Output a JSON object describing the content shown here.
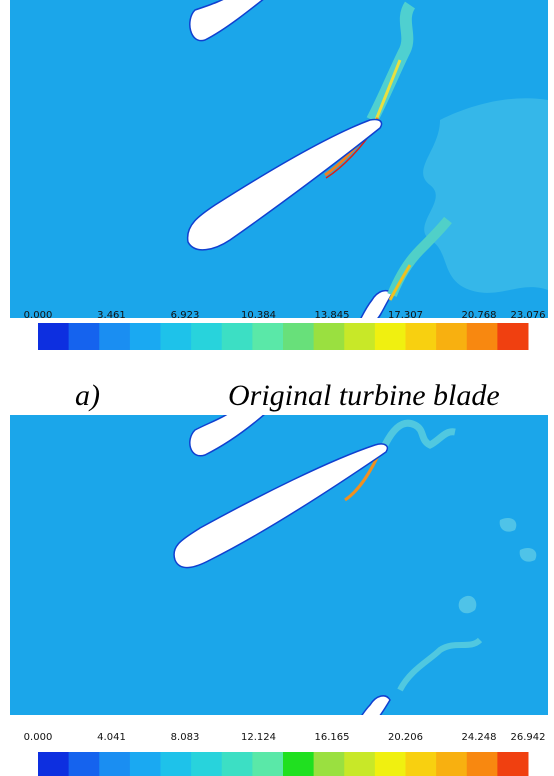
{
  "panels": [
    {
      "colorbar": {
        "ticks": [
          "0.000",
          "3.461",
          "6.923",
          "10.384",
          "13.845",
          "17.307",
          "20.768",
          "23.076"
        ]
      },
      "label": "a)",
      "caption": "Original turbine blade"
    },
    {
      "colorbar": {
        "ticks": [
          "0.000",
          "4.041",
          "8.083",
          "12.124",
          "16.165",
          "20.206",
          "24.248",
          "26.942"
        ]
      }
    }
  ]
}
